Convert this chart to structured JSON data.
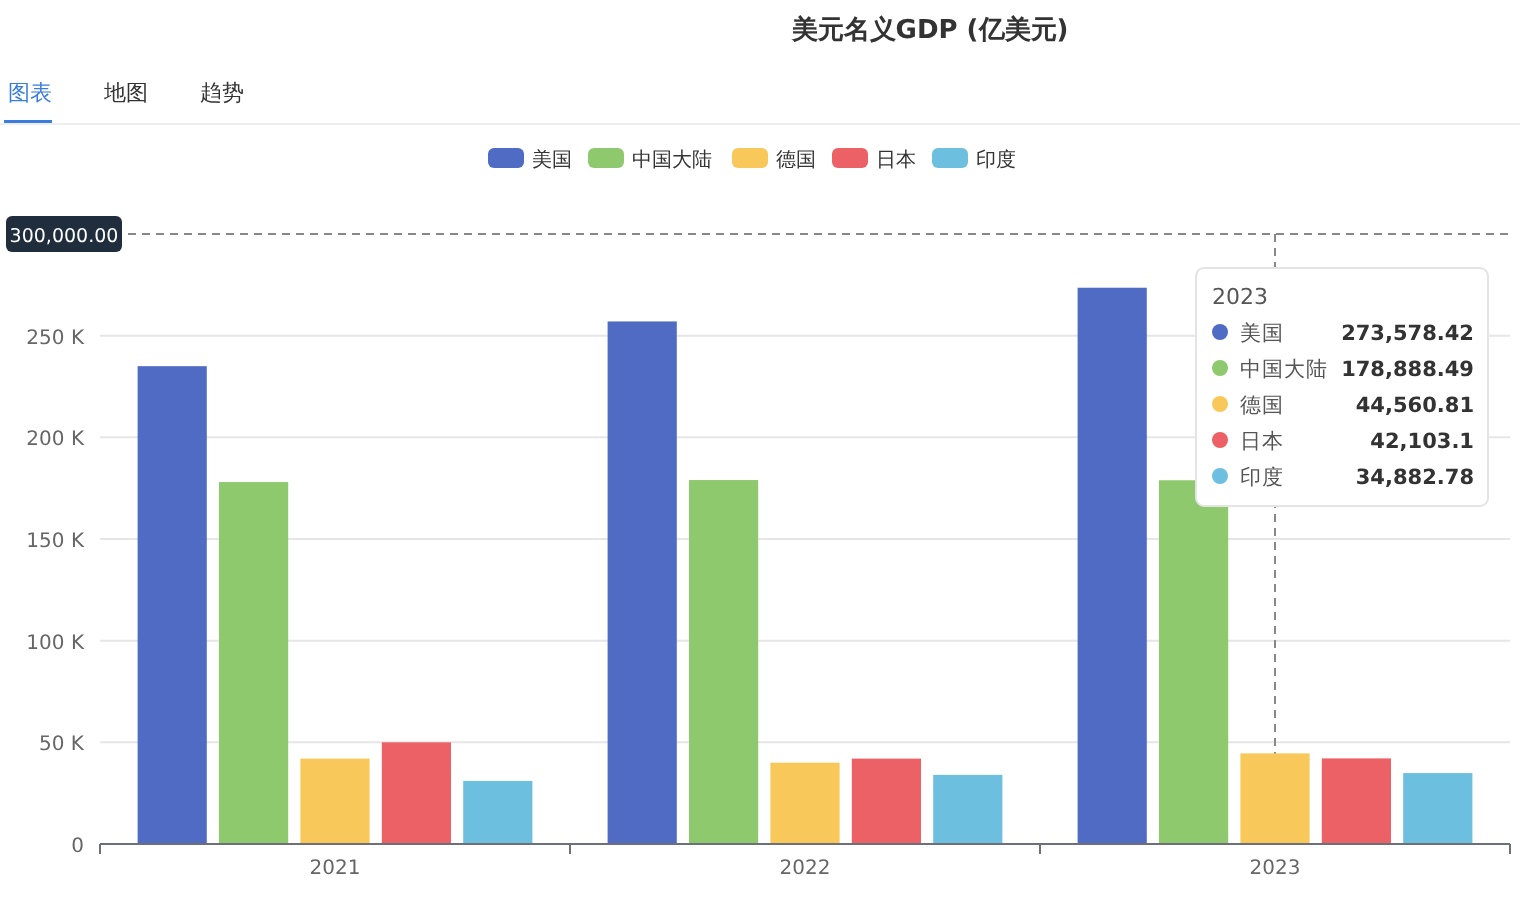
{
  "chart_data": {
    "type": "bar",
    "title": "美元名义GDP (亿美元)",
    "annotations": [
      "图表",
      "地图",
      "趋势",
      "2023",
      "273,578.42",
      "178,888.49",
      "44,560.81",
      "42,103.1",
      "34,882.78"
    ],
    "categories": [
      "2021",
      "2022",
      "2023"
    ],
    "series": [
      {
        "name": "美国",
        "color": "#4f6bc4",
        "values": [
          235000,
          257000,
          273578.42
        ]
      },
      {
        "name": "中国大陆",
        "color": "#8ec96e",
        "values": [
          178000,
          179000,
          178888.49
        ]
      },
      {
        "name": "德国",
        "color": "#f9c85a",
        "values": [
          42000,
          40000,
          44560.81
        ]
      },
      {
        "name": "日本",
        "color": "#ec6165",
        "values": [
          50000,
          42000,
          42103.1
        ]
      },
      {
        "name": "印度",
        "color": "#6dbfdf",
        "values": [
          31000,
          34000,
          34882.78
        ]
      }
    ],
    "ylim": [
      0,
      300000
    ],
    "yticks": [
      {
        "value": 0,
        "label": "0"
      },
      {
        "value": 50000,
        "label": "50 K"
      },
      {
        "value": 100000,
        "label": "100 K"
      },
      {
        "value": 150000,
        "label": "150 K"
      },
      {
        "value": 200000,
        "label": "200 K"
      },
      {
        "value": 250000,
        "label": "250 K"
      }
    ],
    "ref_lines": [
      {
        "axis": "y",
        "value": 300000,
        "label": "300,000.00",
        "line_style": "dashed"
      },
      {
        "axis": "x",
        "value": "2023",
        "line_style": "dashed"
      }
    ],
    "grid": "y",
    "legend": "top"
  }
}
